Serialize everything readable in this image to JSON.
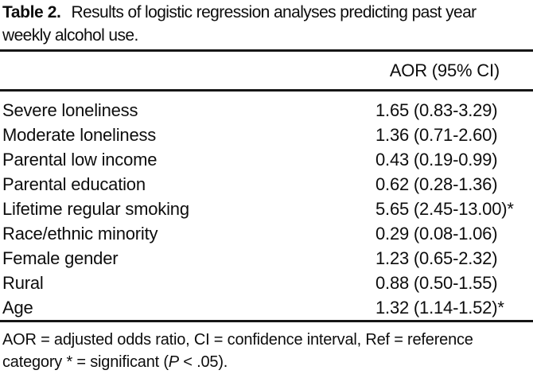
{
  "caption": {
    "label": "Table 2.",
    "line1": "Results of logistic regression analyses predicting past year",
    "line2": "weekly alcohol use."
  },
  "header": {
    "aor_ci": "AOR (95% CI)"
  },
  "rows": [
    {
      "label": "Severe loneliness",
      "value": "1.65 (0.83-3.29)"
    },
    {
      "label": "Moderate loneliness",
      "value": "1.36 (0.71-2.60)"
    },
    {
      "label": "Parental low income",
      "value": "0.43 (0.19-0.99)"
    },
    {
      "label": "Parental education",
      "value": "0.62 (0.28-1.36)"
    },
    {
      "label": "Lifetime regular smoking",
      "value": "5.65 (2.45-13.00)*"
    },
    {
      "label": "Race/ethnic minority",
      "value": "0.29 (0.08-1.06)"
    },
    {
      "label": "Female gender",
      "value": "1.23 (0.65-2.32)"
    },
    {
      "label": "Rural",
      "value": "0.88 (0.50-1.55)"
    },
    {
      "label": "Age",
      "value": "1.32 (1.14-1.52)*"
    }
  ],
  "footnote": {
    "line1": "AOR = adjusted odds ratio, CI = confidence interval, Ref = reference",
    "line2_pre": "category * = significant (",
    "line2_italic": "P",
    "line2_post": " < .05)."
  }
}
